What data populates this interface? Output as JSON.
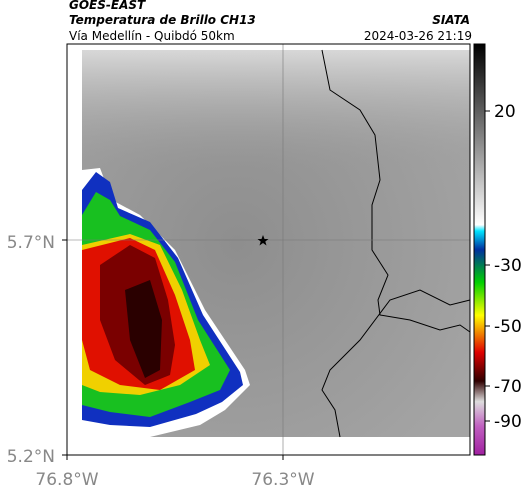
{
  "header": {
    "title": "GOES-EAST",
    "subtitle": "Temperatura de Brillo CH13",
    "source": "SIATA",
    "route": "Vía Medellín - Quibdó 50km",
    "timestamp": "2024-03-26 21:19"
  },
  "map": {
    "lat_labels": [
      "5.7°N",
      "5.2°N"
    ],
    "lon_labels": [
      "76.8°W",
      "76.3°W"
    ]
  },
  "colorbar": {
    "ticks": [
      "20",
      "-30",
      "-50",
      "-70",
      "-90"
    ]
  }
}
